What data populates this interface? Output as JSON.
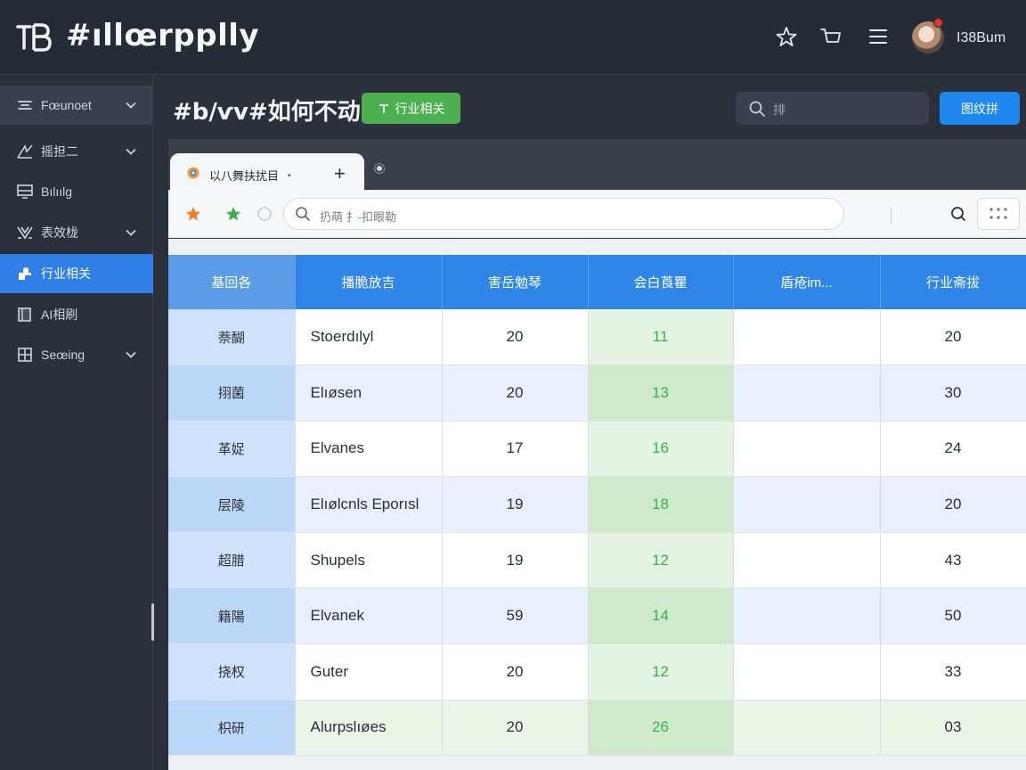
{
  "app": {
    "title": "#ıllœrpplly",
    "username": "I38Bum"
  },
  "top_icons": [
    "star-icon",
    "cart-icon",
    "menu-icon"
  ],
  "sidebar": {
    "items": [
      {
        "label": "Fœunoet",
        "icon": "filter-icon",
        "has_chevron": true
      },
      {
        "label": "摇担二",
        "icon": "trend-icon",
        "has_chevron": true
      },
      {
        "label": "Bılıılg",
        "icon": "monitor-icon",
        "has_chevron": false
      },
      {
        "label": "表效栊",
        "icon": "split-icon",
        "has_chevron": true
      },
      {
        "label": "行业相关",
        "icon": "puzzle-icon",
        "has_chevron": false,
        "active": true
      },
      {
        "label": "AI相刷",
        "icon": "book-icon",
        "has_chevron": false
      },
      {
        "label": "Seœing",
        "icon": "grid-settings-icon",
        "has_chevron": true
      }
    ]
  },
  "header": {
    "title": "#b/ѵv#如何不动",
    "green_button": "行业相关",
    "search_placeholder": "排",
    "blue_button": "图纹拼"
  },
  "browser": {
    "tab_label": "以八舞扶扰目",
    "tab_dot": "•",
    "tab_plus": "+",
    "address_text": "扔萌  扌-扣眼勒"
  },
  "table": {
    "headers": [
      "基回各",
      "播脆放吉",
      "害岳勉琴",
      "会白莨瞿",
      "盾疮im...",
      "行业斋拔"
    ],
    "rows": [
      [
        "萘醐",
        "Stoerdılyl",
        "20",
        "11",
        "",
        "20"
      ],
      [
        "挧菌",
        "Elıøsen",
        "20",
        "13",
        "",
        "30"
      ],
      [
        "革娖",
        "Elvanes",
        "17",
        "16",
        "",
        "24"
      ],
      [
        "层陵",
        "Elıølcnls Eporısl",
        "19",
        "18",
        "",
        "20"
      ],
      [
        "超腊",
        "Shupels",
        "19",
        "12",
        "",
        "43"
      ],
      [
        "籍陽",
        "Elvanek",
        "59",
        "14",
        "",
        "50"
      ],
      [
        "挠权",
        "Guter",
        "20",
        "12",
        "",
        "33"
      ],
      [
        "枳研",
        "Alurpslıøes",
        "20",
        "26",
        "",
        "03"
      ]
    ]
  },
  "colors": {
    "accent_blue": "#2f86e8",
    "accent_green": "#4caf50",
    "notification": "#e8322b"
  }
}
